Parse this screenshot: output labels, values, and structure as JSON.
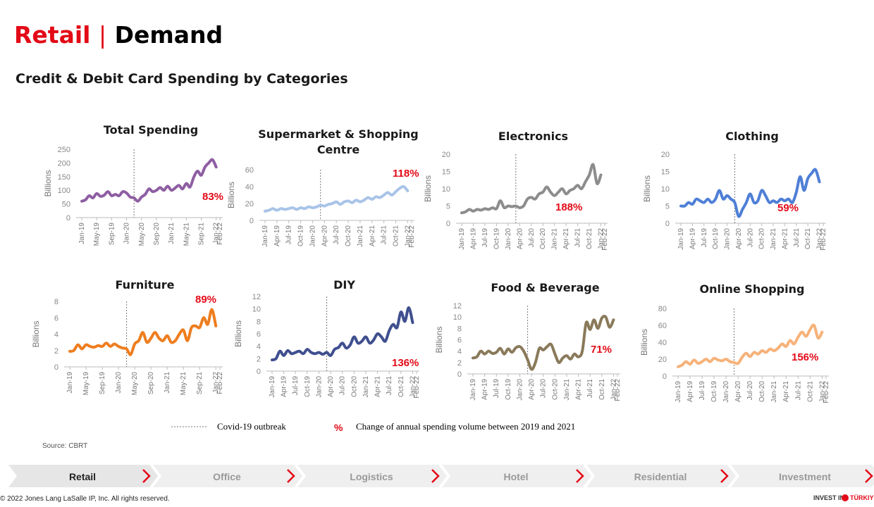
{
  "header": {
    "title_left": "Retail",
    "title_sep": "|",
    "title_right": "Demand",
    "subtitle": "Credit & Debit Card Spending by Categories"
  },
  "chart_data": [
    {
      "type": "line",
      "title": "Total Spending",
      "ylabel": "Billions",
      "annotation": "83%",
      "color": "#8e5ea2",
      "outbreak": "Mar-20",
      "categories": [
        "Jan-19",
        null,
        null,
        null,
        "May-19",
        null,
        null,
        null,
        "Sep-19",
        null,
        null,
        null,
        "Jan-20",
        null,
        null,
        null,
        "May-20",
        null,
        null,
        null,
        "Sep-20",
        null,
        null,
        null,
        "Jan-21",
        null,
        null,
        null,
        "May-21",
        null,
        null,
        null,
        "Sep-21",
        null,
        null,
        null,
        "Jan-22",
        "Feb-22"
      ],
      "values": [
        60,
        65,
        80,
        72,
        88,
        78,
        82,
        95,
        80,
        85,
        80,
        95,
        90,
        75,
        72,
        60,
        75,
        85,
        105,
        95,
        100,
        110,
        100,
        115,
        100,
        108,
        118,
        105,
        125,
        112,
        148,
        170,
        155,
        185,
        200,
        212,
        185,
        null
      ],
      "ylim": [
        0,
        250
      ],
      "yticks": [
        0,
        50,
        100,
        150,
        200,
        250
      ]
    },
    {
      "type": "line",
      "title": "Supermarket & Shopping Centre",
      "ylabel": "Billions",
      "annotation": "118%",
      "color": "#a9c4e8",
      "outbreak": "Mar-20",
      "categories": [
        "Jan-19",
        null,
        null,
        "Apr-19",
        null,
        null,
        "Jul-19",
        null,
        null,
        "Oct-19",
        null,
        null,
        "Jan-20",
        null,
        null,
        "Apr-20",
        null,
        null,
        "Jul-20",
        null,
        null,
        "Oct-20",
        null,
        null,
        "Jan-21",
        null,
        null,
        "Apr-21",
        null,
        null,
        "Jul-21",
        null,
        null,
        "Oct-21",
        null,
        null,
        "Jan-22",
        "Feb-22"
      ],
      "values": [
        11,
        12,
        14,
        12,
        14,
        13,
        14,
        15,
        13,
        15,
        14,
        16,
        15,
        16,
        18,
        17,
        19,
        20,
        22,
        19,
        22,
        23,
        21,
        24,
        22,
        24,
        27,
        25,
        28,
        27,
        30,
        33,
        30,
        34,
        38,
        40,
        35,
        null
      ],
      "ylim": [
        0,
        60
      ],
      "yticks": [
        0,
        20,
        40,
        60
      ]
    },
    {
      "type": "line",
      "title": "Electronics",
      "ylabel": "Billions",
      "annotation": "188%",
      "color": "#8c8c8c",
      "outbreak": "Mar-20",
      "categories": [
        "Jan-19",
        null,
        null,
        "Apr-19",
        null,
        null,
        "Jul-19",
        null,
        null,
        "Oct-19",
        null,
        null,
        "Jan-20",
        null,
        null,
        "Apr-20",
        null,
        null,
        "Jul-20",
        null,
        null,
        "Oct-20",
        null,
        null,
        "Jan-21",
        null,
        null,
        "Apr-21",
        null,
        null,
        "Jul-21",
        null,
        null,
        "Oct-21",
        null,
        null,
        "Jan-22",
        "Feb-22"
      ],
      "values": [
        3,
        3.3,
        4,
        3.5,
        4,
        3.8,
        4.2,
        4,
        4.5,
        4.2,
        6.5,
        4.5,
        5,
        4.8,
        5,
        4.5,
        5,
        7,
        7.5,
        7,
        8.5,
        9,
        10.5,
        9,
        8,
        9,
        10,
        8.5,
        9.5,
        10,
        11,
        10,
        12,
        14,
        17,
        11.5,
        14,
        null
      ],
      "ylim": [
        0,
        20
      ],
      "yticks": [
        0,
        5,
        10,
        15,
        20
      ]
    },
    {
      "type": "line",
      "title": "Clothing",
      "ylabel": "Billions",
      "annotation": "59%",
      "color": "#4f7fd6",
      "outbreak": "Mar-20",
      "categories": [
        "Jan-19",
        null,
        null,
        "Apr-19",
        null,
        null,
        "Jul-19",
        null,
        null,
        "Oct-19",
        null,
        null,
        "Jan-20",
        null,
        null,
        "Apr-20",
        null,
        null,
        "Jul-20",
        null,
        null,
        "Oct-20",
        null,
        null,
        "Jan-21",
        null,
        null,
        "Apr-21",
        null,
        null,
        "Jul-21",
        null,
        null,
        "Oct-21",
        null,
        null,
        "Jan-22",
        "Feb-22"
      ],
      "values": [
        5,
        5,
        6,
        5.5,
        7,
        6.5,
        6,
        7,
        6,
        7,
        9.5,
        7,
        8,
        7,
        6,
        2,
        4,
        6,
        8.5,
        6,
        6.5,
        9.5,
        8,
        6,
        6.5,
        6,
        7,
        6.5,
        7,
        6,
        9,
        13.5,
        9.5,
        13,
        14.5,
        15.5,
        12,
        null
      ],
      "ylim": [
        0,
        20
      ],
      "yticks": [
        0,
        5,
        10,
        15,
        20
      ]
    },
    {
      "type": "line",
      "title": "Furniture",
      "ylabel": "Billions",
      "annotation": "89%",
      "color": "#ee7d1e",
      "outbreak": "Mar-20",
      "categories": [
        "Jan-19",
        null,
        null,
        null,
        "May-19",
        null,
        null,
        null,
        "Sep-19",
        null,
        null,
        null,
        "Jan-20",
        null,
        null,
        null,
        "May-20",
        null,
        null,
        null,
        "Sep-20",
        null,
        null,
        null,
        "Jan-21",
        null,
        null,
        null,
        "May-21",
        null,
        null,
        null,
        "Sep-21",
        null,
        null,
        null,
        "Jan-22",
        "Feb-22"
      ],
      "values": [
        1.9,
        2,
        2.7,
        2.2,
        2.7,
        2.5,
        2.4,
        2.6,
        2.5,
        2.9,
        2.5,
        2.8,
        2.5,
        2.3,
        2.2,
        1.5,
        2.8,
        3.2,
        4.2,
        3,
        3.5,
        4.2,
        3.5,
        3.2,
        3.8,
        3,
        3.2,
        4,
        4.5,
        3.2,
        4.8,
        5,
        4.8,
        6,
        5.2,
        7,
        5,
        null
      ],
      "ylim": [
        0,
        8
      ],
      "yticks": [
        0,
        2,
        4,
        6,
        8
      ]
    },
    {
      "type": "line",
      "title": "DIY",
      "ylabel": "Billions",
      "annotation": "136%",
      "color": "#3f4f8f",
      "outbreak": "Mar-20",
      "categories": [
        "Jan-19",
        null,
        null,
        "Apr-19",
        null,
        null,
        "Jul-19",
        null,
        null,
        "Oct-19",
        null,
        null,
        "Jan-20",
        null,
        null,
        "Apr-20",
        null,
        null,
        "Jul-20",
        null,
        null,
        "Oct-20",
        null,
        null,
        "Jan-21",
        null,
        null,
        "Apr-21",
        null,
        null,
        "Jul-21",
        null,
        null,
        "Oct-21",
        null,
        null,
        "Jan-22",
        "Feb-22"
      ],
      "values": [
        1.8,
        2,
        3.2,
        2.5,
        3.3,
        2.8,
        3,
        3.2,
        2.8,
        3.5,
        3,
        2.8,
        3,
        2.7,
        3,
        2.5,
        3.5,
        3.8,
        4.5,
        3.7,
        4.2,
        5.5,
        4.5,
        4.8,
        5.5,
        4.5,
        5,
        6,
        5.5,
        4.8,
        6.5,
        7.5,
        7,
        9.5,
        8,
        10.2,
        7.8,
        null
      ],
      "ylim": [
        0,
        12
      ],
      "yticks": [
        0,
        2,
        4,
        6,
        8,
        10,
        12
      ]
    },
    {
      "type": "line",
      "title": "Food & Beverage",
      "ylabel": "Billions",
      "annotation": "71%",
      "color": "#8a7a5a",
      "outbreak": "Mar-20",
      "categories": [
        "Jan-19",
        null,
        null,
        "Apr-19",
        null,
        null,
        "Jul-19",
        null,
        null,
        "Oct-19",
        null,
        null,
        "Jan-20",
        null,
        null,
        "Apr-20",
        null,
        null,
        "Jul-20",
        null,
        null,
        "Oct-20",
        null,
        null,
        "Jan-21",
        null,
        null,
        "Apr-21",
        null,
        null,
        "Jul-21",
        null,
        null,
        "Oct-21",
        null,
        null,
        "Jan-22",
        "Feb-22"
      ],
      "values": [
        2.8,
        3,
        4,
        3.5,
        4,
        3.6,
        3.8,
        4.5,
        3.5,
        4.4,
        3.8,
        4.6,
        4.8,
        4,
        2.5,
        0.8,
        2,
        4.5,
        4.2,
        4.8,
        5.2,
        3.5,
        2,
        2.8,
        3.2,
        2.6,
        3.5,
        3,
        4,
        9,
        7.8,
        9.5,
        8,
        9.8,
        10,
        8.2,
        9.5,
        null
      ],
      "ylim": [
        0,
        12
      ],
      "yticks": [
        0,
        2,
        4,
        6,
        8,
        10,
        12
      ]
    },
    {
      "type": "line",
      "title": "Online Shopping",
      "ylabel": "Billions",
      "annotation": "156%",
      "color": "#f6b27a",
      "outbreak": "Mar-20",
      "categories": [
        "Jan-19",
        null,
        null,
        "Apr-19",
        null,
        null,
        "Jul-19",
        null,
        null,
        "Oct-19",
        null,
        null,
        "Jan-20",
        null,
        null,
        "Apr-20",
        null,
        null,
        "Jul-20",
        null,
        null,
        "Oct-20",
        null,
        null,
        "Jan-21",
        null,
        null,
        "Apr-21",
        null,
        null,
        "Jul-21",
        null,
        null,
        "Oct-21",
        null,
        null,
        "Jan-22",
        "Feb-22"
      ],
      "values": [
        11,
        13,
        17,
        14,
        19,
        15,
        17,
        20,
        17,
        21,
        19,
        18,
        20,
        17,
        16,
        15,
        22,
        27,
        23,
        28,
        26,
        30,
        28,
        32,
        30,
        33,
        38,
        35,
        42,
        38,
        46,
        52,
        47,
        55,
        60,
        45,
        52,
        null
      ],
      "ylim": [
        0,
        80
      ],
      "yticks": [
        0,
        20,
        40,
        60,
        80
      ]
    }
  ],
  "legend": {
    "covid": "Covid-19 outbreak",
    "symbol": "%",
    "text": "Change of annual spending volume between 2019 and 2021"
  },
  "source": "Source: CBRT",
  "nav": [
    "Retail",
    "Office",
    "Logistics",
    "Hotel",
    "Residential",
    "Investment"
  ],
  "footer": {
    "copyright": "© 2022 Jones Lang LaSalle IP, Inc. All rights reserved.",
    "logo_left": "INVEST IN",
    "logo_right": "TÜRKIYE"
  }
}
